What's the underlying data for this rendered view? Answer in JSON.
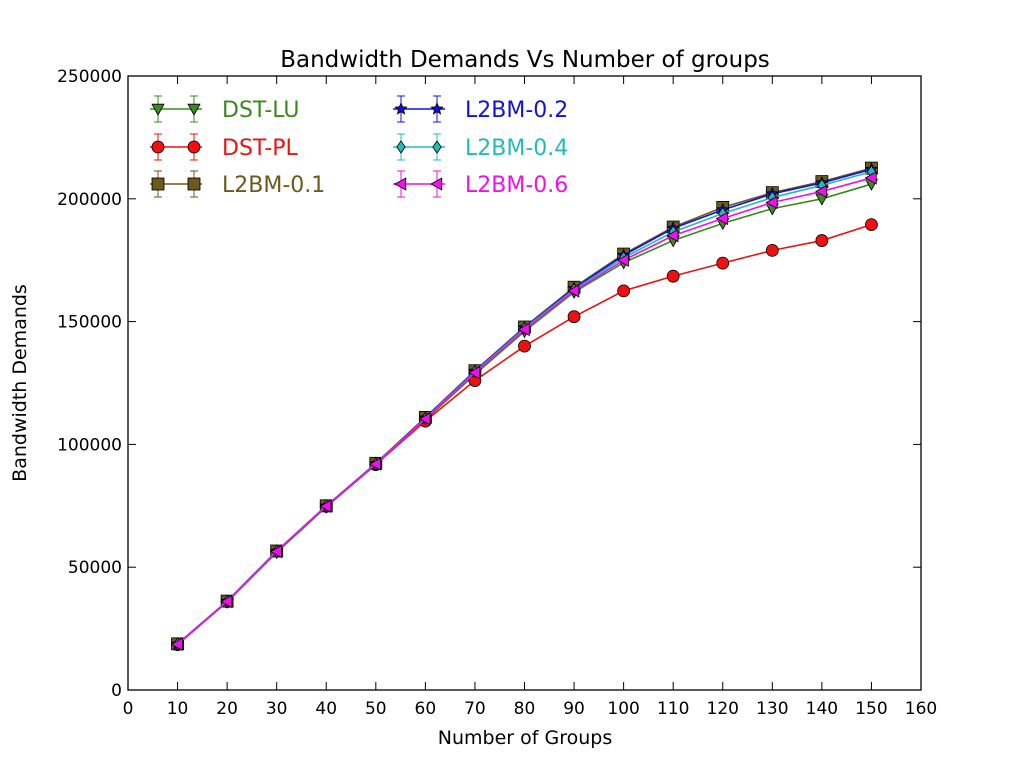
{
  "chart_data": {
    "type": "line",
    "title": "Bandwidth Demands Vs Number of groups",
    "xlabel": "Number of Groups",
    "ylabel": "Bandwidth Demands",
    "xlim": [
      0,
      160
    ],
    "ylim": [
      0,
      250000
    ],
    "xticks": [
      "0",
      "10",
      "20",
      "30",
      "40",
      "50",
      "60",
      "70",
      "80",
      "90",
      "100",
      "110",
      "120",
      "130",
      "140",
      "150",
      "160"
    ],
    "yticks": [
      "0",
      "50000",
      "100000",
      "150000",
      "200000",
      "250000"
    ],
    "grid": false,
    "legend_placement": "top-left",
    "x": [
      10,
      20,
      30,
      40,
      50,
      60,
      70,
      80,
      90,
      100,
      110,
      120,
      130,
      140,
      150
    ],
    "series": [
      {
        "name": "DST-LU",
        "color": "#3a8a1f",
        "marker": "triangle-down",
        "values": [
          18500,
          35800,
          56000,
          74500,
          91800,
          110000,
          128500,
          146000,
          162000,
          174000,
          183000,
          190000,
          196000,
          200000,
          206000
        ]
      },
      {
        "name": "DST-PL",
        "color": "#ee1111",
        "marker": "circle",
        "values": [
          18500,
          36000,
          56500,
          74800,
          91800,
          109500,
          126000,
          140000,
          152000,
          162500,
          168500,
          173800,
          179000,
          183000,
          189500
        ]
      },
      {
        "name": "L2BM-0.1",
        "color": "#6b5a1c",
        "marker": "square",
        "values": [
          18800,
          36200,
          56600,
          75000,
          92300,
          111000,
          130000,
          147800,
          164000,
          177500,
          188500,
          196500,
          202500,
          207000,
          212500
        ]
      },
      {
        "name": "L2BM-0.2",
        "color": "#1111dd",
        "marker": "star",
        "values": [
          18700,
          36100,
          56500,
          74900,
          92200,
          110800,
          129800,
          147500,
          163500,
          177000,
          188000,
          195500,
          202000,
          206500,
          212000
        ]
      },
      {
        "name": "L2BM-0.4",
        "color": "#22bbbb",
        "marker": "diamond",
        "values": [
          18700,
          36100,
          56500,
          74900,
          92100,
          110600,
          129500,
          147200,
          163000,
          176000,
          186500,
          194000,
          200500,
          205500,
          211000
        ]
      },
      {
        "name": "L2BM-0.6",
        "color": "#ee11ee",
        "marker": "triangle-left",
        "values": [
          18600,
          36000,
          56400,
          74800,
          92000,
          110400,
          129200,
          146800,
          162500,
          175000,
          185000,
          192000,
          198500,
          203000,
          208500
        ]
      }
    ]
  }
}
